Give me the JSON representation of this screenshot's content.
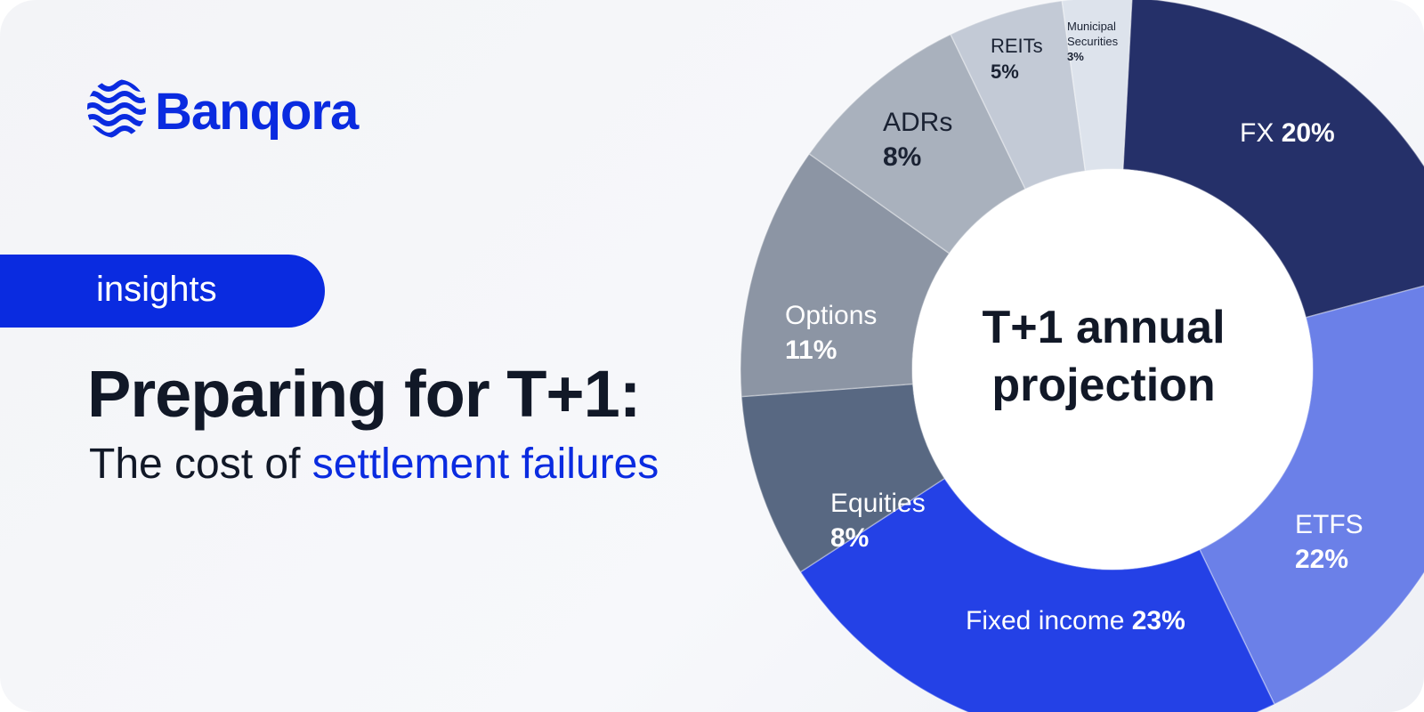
{
  "brand": "Banqora",
  "tag": "insights",
  "headline": "Preparing for T+1:",
  "subheadline": {
    "prefix": "The cost of",
    "highlight": "settlement failures"
  },
  "chart_data": {
    "type": "donut",
    "title": "T+1 annual projection",
    "categories": [
      "FX",
      "ETFS",
      "Fixed income",
      "Equities",
      "Options",
      "ADRs",
      "REITs",
      "Municipal Securities"
    ],
    "values": [
      20,
      22,
      23,
      8,
      11,
      8,
      5,
      3
    ],
    "value_labels": [
      "20%",
      "22%",
      "23%",
      "8%",
      "11%",
      "8%",
      "5%",
      "3%"
    ],
    "colors": [
      "#253069",
      "#6b80e8",
      "#2441e6",
      "#586882",
      "#8c95a4",
      "#a9b1bd",
      "#c3cad6",
      "#dde3ec"
    ]
  }
}
